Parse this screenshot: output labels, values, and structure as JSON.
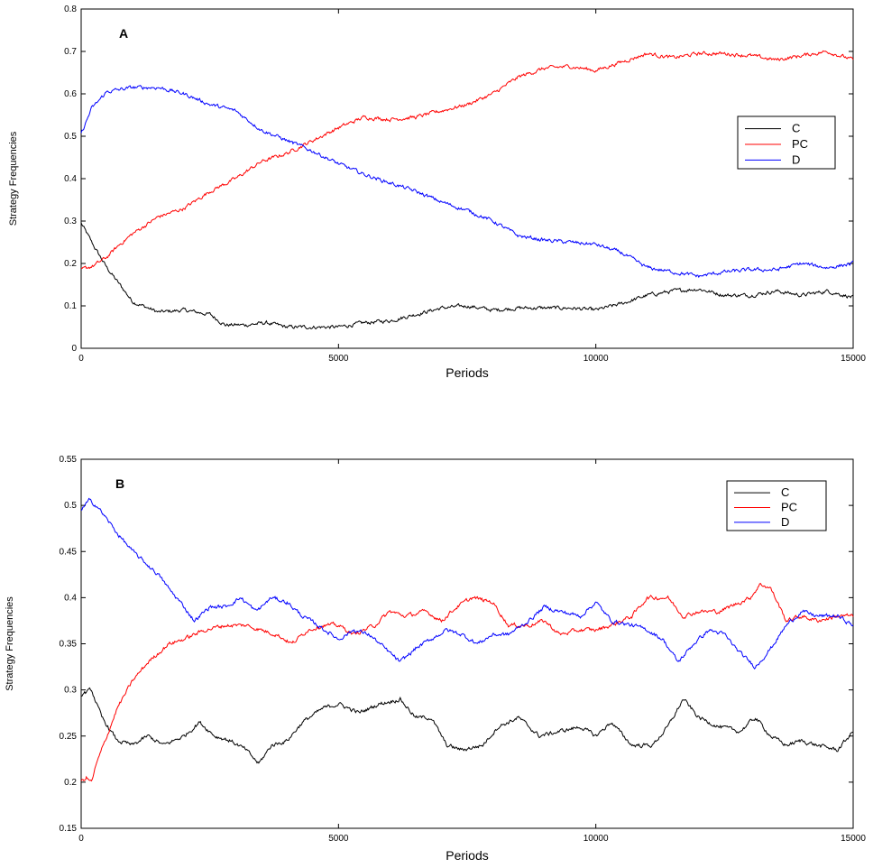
{
  "chart_data": [
    {
      "type": "line",
      "panel_label": "A",
      "xlabel": "Periods",
      "ylabel": "Strategy Frequencies",
      "xlim": [
        0,
        15000
      ],
      "ylim": [
        0,
        0.8
      ],
      "xticks": [
        0,
        5000,
        10000,
        15000
      ],
      "xtick_labels": [
        "0",
        "5000",
        "10000",
        "15000"
      ],
      "yticks": [
        0,
        0.1,
        0.2,
        0.3,
        0.4,
        0.5,
        0.6,
        0.7,
        0.8
      ],
      "ytick_labels": [
        "0",
        "0.1",
        "0.2",
        "0.3",
        "0.4",
        "0.5",
        "0.6",
        "0.7",
        "0.8"
      ],
      "grid": false,
      "legend_position": "right",
      "series": [
        {
          "name": "C",
          "color": "#000000",
          "x": [
            0,
            250,
            500,
            750,
            1000,
            1500,
            2000,
            2500,
            2800,
            3200,
            3600,
            4000,
            4500,
            5000,
            5500,
            6000,
            6500,
            7000,
            7500,
            8000,
            8500,
            9000,
            9500,
            10000,
            10500,
            11000,
            11500,
            12000,
            12500,
            13000,
            13500,
            14000,
            14500,
            15000
          ],
          "y": [
            0.295,
            0.24,
            0.19,
            0.15,
            0.11,
            0.085,
            0.09,
            0.08,
            0.055,
            0.055,
            0.06,
            0.05,
            0.05,
            0.05,
            0.06,
            0.065,
            0.08,
            0.095,
            0.1,
            0.09,
            0.095,
            0.095,
            0.095,
            0.09,
            0.105,
            0.125,
            0.135,
            0.14,
            0.125,
            0.125,
            0.135,
            0.125,
            0.135,
            0.12
          ]
        },
        {
          "name": "PC",
          "color": "#ff0000",
          "x": [
            0,
            250,
            500,
            750,
            1000,
            1500,
            2000,
            2500,
            3000,
            3500,
            4000,
            4500,
            5000,
            5500,
            6000,
            6500,
            7000,
            7500,
            8000,
            8500,
            9000,
            9500,
            10000,
            10500,
            11000,
            11500,
            12000,
            12500,
            13000,
            13500,
            14000,
            14500,
            15000
          ],
          "y": [
            0.185,
            0.195,
            0.215,
            0.245,
            0.27,
            0.31,
            0.33,
            0.37,
            0.4,
            0.44,
            0.46,
            0.49,
            0.52,
            0.545,
            0.54,
            0.545,
            0.56,
            0.575,
            0.6,
            0.64,
            0.66,
            0.665,
            0.655,
            0.675,
            0.695,
            0.685,
            0.695,
            0.695,
            0.69,
            0.68,
            0.69,
            0.7,
            0.68
          ]
        },
        {
          "name": "D",
          "color": "#0000ff",
          "x": [
            0,
            200,
            500,
            750,
            1000,
            1500,
            2000,
            2500,
            3000,
            3500,
            4000,
            4500,
            5000,
            5500,
            6000,
            6500,
            7000,
            7500,
            8000,
            8500,
            9000,
            9500,
            10000,
            10500,
            11000,
            11500,
            12000,
            12500,
            13000,
            13500,
            14000,
            14500,
            15000
          ],
          "y": [
            0.505,
            0.565,
            0.605,
            0.61,
            0.615,
            0.615,
            0.6,
            0.575,
            0.56,
            0.515,
            0.49,
            0.465,
            0.435,
            0.41,
            0.39,
            0.37,
            0.345,
            0.325,
            0.3,
            0.265,
            0.255,
            0.25,
            0.245,
            0.225,
            0.19,
            0.18,
            0.17,
            0.18,
            0.185,
            0.185,
            0.2,
            0.19,
            0.2
          ]
        }
      ]
    },
    {
      "type": "line",
      "panel_label": "B",
      "xlabel": "Periods",
      "ylabel": "Strategy Frequencies",
      "xlim": [
        0,
        15000
      ],
      "ylim": [
        0.15,
        0.55
      ],
      "xticks": [
        0,
        5000,
        10000,
        15000
      ],
      "xtick_labels": [
        "0",
        "5000",
        "10000",
        "15000"
      ],
      "yticks": [
        0.15,
        0.2,
        0.25,
        0.3,
        0.35,
        0.4,
        0.45,
        0.5,
        0.55
      ],
      "ytick_labels": [
        "0.15",
        "0.2",
        "0.25",
        "0.3",
        "0.35",
        "0.4",
        "0.45",
        "0.5",
        "0.55"
      ],
      "grid": false,
      "legend_position": "top-right",
      "series": [
        {
          "name": "C",
          "color": "#000000",
          "x": [
            0,
            200,
            400,
            700,
            1000,
            1300,
            1600,
            2000,
            2300,
            2600,
            2900,
            3200,
            3450,
            3700,
            4000,
            4300,
            4700,
            5000,
            5400,
            5800,
            6200,
            6500,
            6800,
            7100,
            7400,
            7800,
            8100,
            8500,
            8900,
            9300,
            9700,
            10000,
            10300,
            10700,
            11100,
            11400,
            11700,
            12000,
            12400,
            12800,
            13100,
            13400,
            13700,
            14000,
            14300,
            14700,
            15000
          ],
          "y": [
            0.295,
            0.3,
            0.27,
            0.245,
            0.24,
            0.25,
            0.24,
            0.25,
            0.265,
            0.25,
            0.245,
            0.235,
            0.22,
            0.24,
            0.245,
            0.265,
            0.28,
            0.285,
            0.275,
            0.285,
            0.29,
            0.27,
            0.27,
            0.24,
            0.235,
            0.24,
            0.26,
            0.27,
            0.25,
            0.255,
            0.26,
            0.25,
            0.265,
            0.24,
            0.24,
            0.26,
            0.29,
            0.27,
            0.26,
            0.255,
            0.27,
            0.25,
            0.24,
            0.245,
            0.24,
            0.235,
            0.255
          ]
        },
        {
          "name": "PC",
          "color": "#ff0000",
          "x": [
            0,
            100,
            200,
            300,
            500,
            700,
            1000,
            1300,
            1700,
            2000,
            2400,
            2800,
            3200,
            3500,
            3800,
            4100,
            4400,
            4700,
            5000,
            5300,
            5700,
            6000,
            6300,
            6700,
            7000,
            7300,
            7600,
            8000,
            8300,
            8700,
            9000,
            9300,
            9700,
            10000,
            10300,
            10700,
            11000,
            11400,
            11700,
            12000,
            12400,
            12800,
            13000,
            13200,
            13400,
            13700,
            14000,
            14300,
            14700,
            15000
          ],
          "y": [
            0.2,
            0.205,
            0.2,
            0.22,
            0.25,
            0.28,
            0.31,
            0.33,
            0.35,
            0.355,
            0.365,
            0.37,
            0.37,
            0.365,
            0.36,
            0.35,
            0.365,
            0.37,
            0.37,
            0.36,
            0.37,
            0.385,
            0.38,
            0.385,
            0.375,
            0.39,
            0.4,
            0.395,
            0.37,
            0.37,
            0.375,
            0.36,
            0.365,
            0.365,
            0.37,
            0.38,
            0.4,
            0.4,
            0.38,
            0.385,
            0.385,
            0.395,
            0.4,
            0.415,
            0.41,
            0.375,
            0.38,
            0.375,
            0.38,
            0.38
          ]
        },
        {
          "name": "D",
          "color": "#0000ff",
          "x": [
            0,
            150,
            300,
            500,
            700,
            1000,
            1300,
            1500,
            1700,
            2000,
            2200,
            2500,
            2800,
            3100,
            3400,
            3700,
            4000,
            4300,
            4600,
            5000,
            5300,
            5600,
            5900,
            6200,
            6500,
            6800,
            7100,
            7400,
            7700,
            8000,
            8300,
            8700,
            9000,
            9300,
            9700,
            10000,
            10300,
            10700,
            11000,
            11300,
            11600,
            11900,
            12200,
            12500,
            12800,
            13100,
            13400,
            13700,
            14000,
            14300,
            14700,
            15000
          ],
          "y": [
            0.495,
            0.505,
            0.5,
            0.485,
            0.47,
            0.45,
            0.435,
            0.425,
            0.41,
            0.39,
            0.375,
            0.39,
            0.39,
            0.4,
            0.385,
            0.4,
            0.395,
            0.38,
            0.37,
            0.355,
            0.365,
            0.36,
            0.345,
            0.33,
            0.345,
            0.355,
            0.365,
            0.36,
            0.35,
            0.36,
            0.36,
            0.375,
            0.39,
            0.385,
            0.38,
            0.395,
            0.375,
            0.37,
            0.365,
            0.355,
            0.33,
            0.35,
            0.365,
            0.36,
            0.34,
            0.325,
            0.345,
            0.37,
            0.385,
            0.38,
            0.38,
            0.37
          ]
        }
      ]
    }
  ]
}
